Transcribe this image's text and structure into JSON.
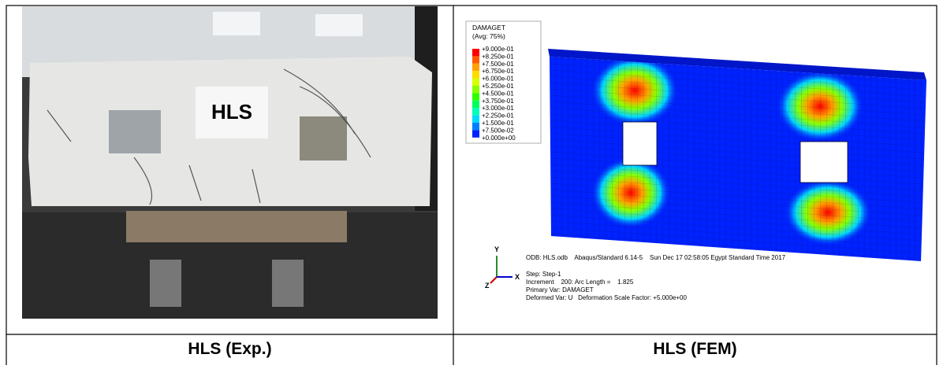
{
  "photo": {
    "label": "HLS"
  },
  "fem": {
    "legend": {
      "title": "DAMAGET",
      "subtitle": "(Avg: 75%)",
      "values": [
        "+9.000e-01",
        "+8.250e-01",
        "+7.500e-01",
        "+6.750e-01",
        "+6.000e-01",
        "+5.250e-01",
        "+4.500e-01",
        "+3.750e-01",
        "+3.000e-01",
        "+2.250e-01",
        "+1.500e-01",
        "+7.500e-02",
        "+0.000e+00"
      ],
      "colors": [
        "#ff0000",
        "#ff5a00",
        "#ffa200",
        "#ffdc00",
        "#d6ff00",
        "#8aff00",
        "#2cff00",
        "#00ff5a",
        "#00ffb8",
        "#00d8ff",
        "#0080ff",
        "#0022ff"
      ]
    },
    "axes": {
      "y": "Y",
      "x": "X",
      "z": "Z"
    },
    "info": [
      "ODB: HLS.odb    Abaqus/Standard 6.14-5    Sun Dec 17 02:58:05 Egypt Standard Time 2017",
      "Step: Step-1",
      "Increment    200: Arc Length =    1.825",
      "Primary Var: DAMAGET",
      "Deformed Var: U   Deformation Scale Factor: +5.000e+00"
    ]
  },
  "captions": [
    "HLS (Exp.)",
    "HLS (FEM)"
  ]
}
